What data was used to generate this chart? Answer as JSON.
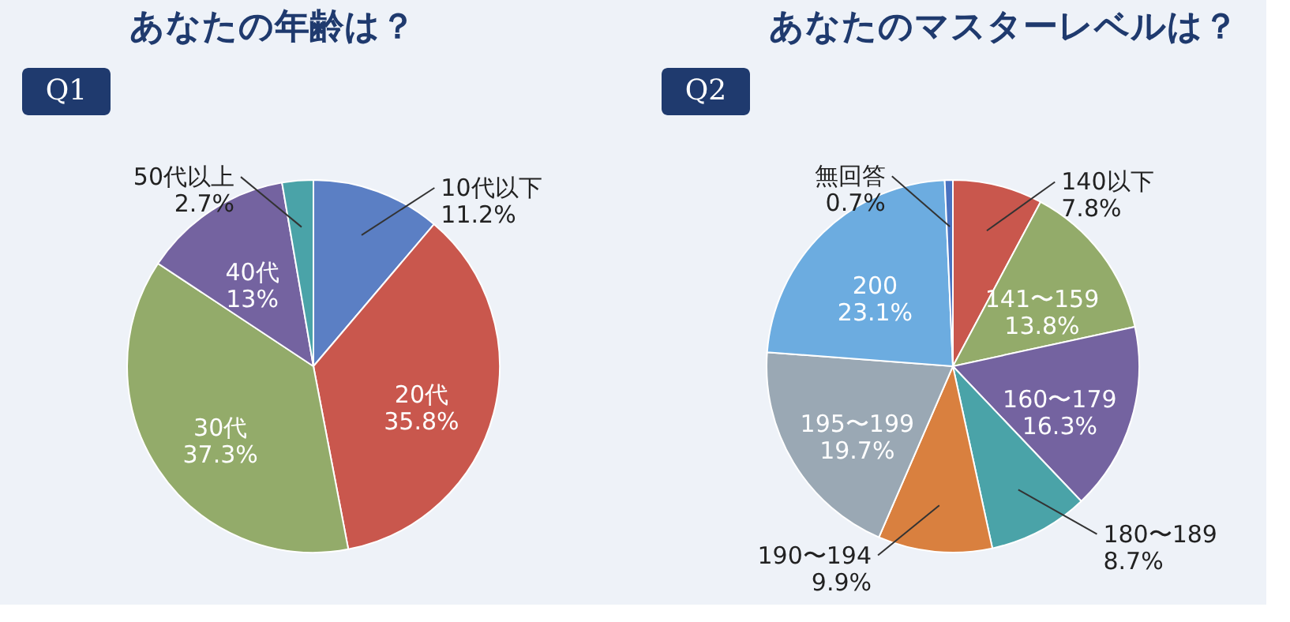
{
  "chart_data": [
    {
      "type": "pie",
      "title": "あなたの年齢は？",
      "annotations": [
        "Q1"
      ],
      "categories": [
        "10代以下",
        "20代",
        "30代",
        "40代",
        "50代以上"
      ],
      "values": [
        11.2,
        35.8,
        37.3,
        13,
        2.7
      ],
      "value_labels": [
        "11.2%",
        "35.8%",
        "37.3%",
        "13%",
        "2.7%"
      ],
      "colors": [
        "#5b7fc4",
        "#c9574d",
        "#93ab6a",
        "#7463a0",
        "#4aa3a8"
      ]
    },
    {
      "type": "pie",
      "title": "あなたのマスターレベルは？",
      "annotations": [
        "Q2"
      ],
      "categories": [
        "140以下",
        "141〜159",
        "160〜179",
        "180〜189",
        "190〜194",
        "195〜199",
        "200",
        "無回答"
      ],
      "values": [
        7.8,
        13.8,
        16.3,
        8.7,
        9.9,
        19.7,
        23.1,
        0.7
      ],
      "value_labels": [
        "7.8%",
        "13.8%",
        "16.3%",
        "8.7%",
        "9.9%",
        "19.7%",
        "23.1%",
        "0.7%"
      ],
      "colors": [
        "#c9574d",
        "#93ab6a",
        "#7463a0",
        "#4aa3a8",
        "#d9803f",
        "#9aa8b4",
        "#6cace0",
        "#4a72c0"
      ]
    }
  ]
}
